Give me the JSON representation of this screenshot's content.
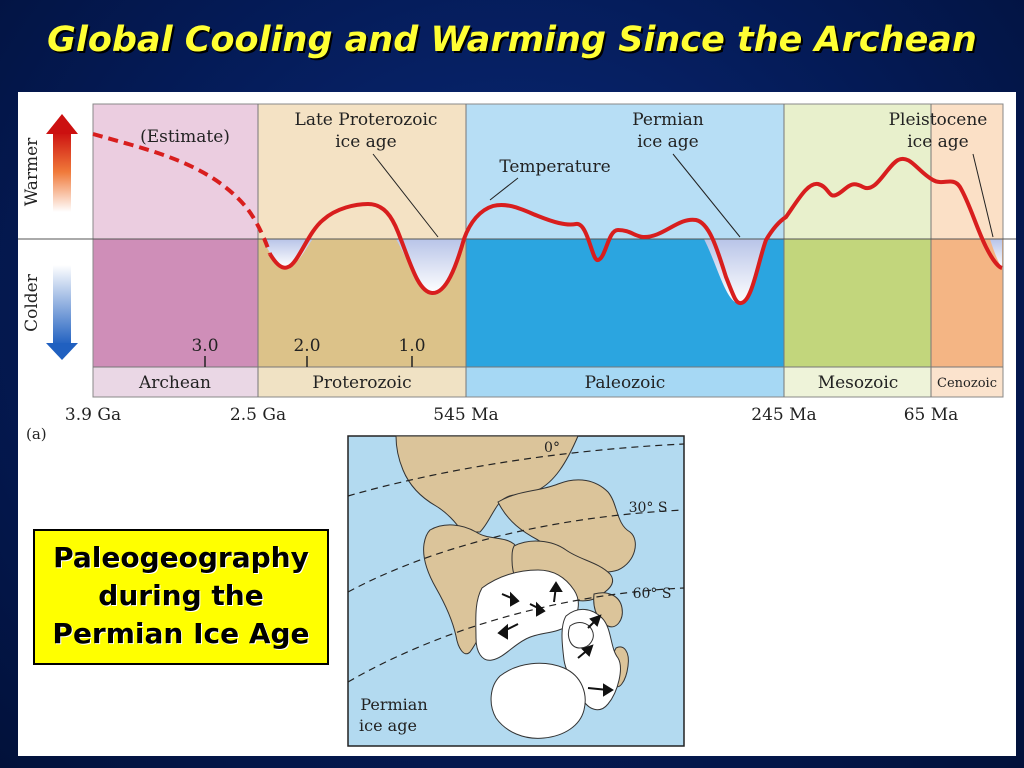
{
  "title": "Global Cooling and Warming Since the Archean",
  "axis": {
    "warmer": "Warmer",
    "colder": "Colder"
  },
  "annotations": {
    "estimate": "(Estimate)",
    "late_proterozoic_1": "Late Proterozoic",
    "late_proterozoic_2": "ice age",
    "permian_1": "Permian",
    "permian_2": "ice age",
    "temperature": "Temperature",
    "pleistocene_1": "Pleistocene",
    "pleistocene_2": "ice age"
  },
  "eons": [
    "Archean",
    "Proterozoic",
    "Paleozoic",
    "Mesozoic",
    "Cenozoic"
  ],
  "ticks": [
    "3.0",
    "2.0",
    "1.0"
  ],
  "time_labels": [
    "3.9 Ga",
    "2.5 Ga",
    "545 Ma",
    "245 Ma",
    "65 Ma"
  ],
  "panel_label": "(a)",
  "map": {
    "lat_0": "0°",
    "lat_30": "30° S",
    "lat_60": "60° S",
    "label_1": "Permian",
    "label_2": "ice age"
  },
  "callout": [
    "Paleogeography",
    "during the",
    "Permian Ice Age"
  ],
  "colors": {
    "title": "#ffff33",
    "curve": "#d81e1e",
    "archean": "#cf8eb8",
    "proterozoic": "#dcc289",
    "paleozoic": "#2ba5e0",
    "mesozoic": "#c2d67c",
    "cenozoic": "#f4b584",
    "callout_bg": "#ffff00"
  }
}
